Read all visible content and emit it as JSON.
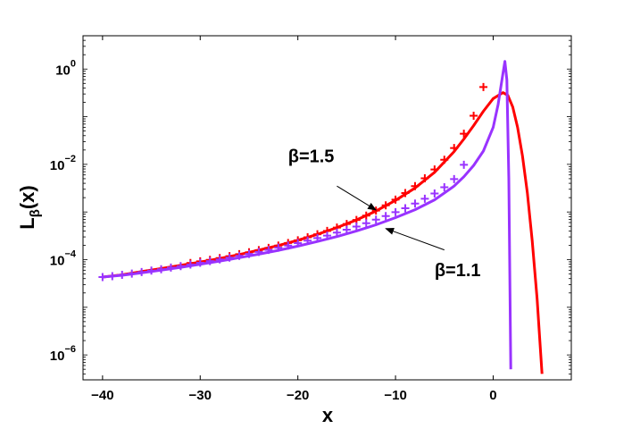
{
  "chart_data": {
    "type": "line",
    "xlabel": "x",
    "ylabel_main": "L",
    "ylabel_sub": "β",
    "ylabel_rest": "(x)",
    "xlim": [
      -42,
      8
    ],
    "ylim": [
      3e-07,
      5
    ],
    "yscale": "log",
    "grid": false,
    "x_ticks": [
      -40,
      -30,
      -20,
      -10,
      0
    ],
    "x_tick_labels": [
      "−40",
      "−30",
      "−20",
      "−10",
      "0"
    ],
    "y_ticks": [
      {
        "value": 1e-06,
        "base": "10",
        "exp": "−6"
      },
      {
        "value": 0.0001,
        "base": "10",
        "exp": "−4"
      },
      {
        "value": 0.01,
        "base": "10",
        "exp": "−2"
      },
      {
        "value": 1,
        "base": "10",
        "exp": "0"
      }
    ],
    "series": [
      {
        "name": "β=1.5",
        "kind": "curve",
        "color": "#ff0000",
        "x": [
          -40,
          -38,
          -36,
          -34,
          -32,
          -30,
          -28,
          -26,
          -24,
          -22,
          -20,
          -18,
          -16,
          -14,
          -12,
          -10,
          -8,
          -6,
          -4,
          -3,
          -2,
          -1,
          0,
          1,
          1.5,
          2,
          2.5,
          3,
          3.5,
          4,
          4.5,
          5
        ],
        "y": [
          4.3e-05,
          4.8e-05,
          5.6e-05,
          6.5e-05,
          7.6e-05,
          8.9e-05,
          0.000106,
          0.000128,
          0.000158,
          0.000198,
          0.000255,
          0.00034,
          0.00047,
          0.00068,
          0.00105,
          0.00175,
          0.0032,
          0.0068,
          0.0185,
          0.034,
          0.065,
          0.13,
          0.24,
          0.32,
          0.28,
          0.16,
          0.06,
          0.015,
          0.0025,
          0.00025,
          1.5e-05,
          4e-07
        ]
      },
      {
        "name": "β=1.5",
        "kind": "markers",
        "color": "#ff0000",
        "x": [
          -31,
          -30,
          -29,
          -28,
          -27,
          -26,
          -25,
          -24,
          -23,
          -22,
          -21,
          -20,
          -19,
          -18,
          -17,
          -16,
          -15,
          -14,
          -13,
          -12,
          -11,
          -10,
          -9,
          -8,
          -7,
          -6,
          -5,
          -4,
          -3,
          -2,
          -1
        ],
        "y": [
          8.5e-05,
          9.2e-05,
          9.9e-05,
          0.000108,
          0.000118,
          0.00013,
          0.000143,
          0.000158,
          0.000176,
          0.000198,
          0.000224,
          0.000255,
          0.000294,
          0.00034,
          0.0004,
          0.00047,
          0.00056,
          0.00068,
          0.00084,
          0.00107,
          0.00138,
          0.00182,
          0.0025,
          0.0035,
          0.0051,
          0.0078,
          0.0125,
          0.022,
          0.044,
          0.105,
          0.42
        ]
      },
      {
        "name": "β=1.1",
        "kind": "curve",
        "color": "#9933ff",
        "x": [
          -40,
          -38,
          -36,
          -34,
          -32,
          -30,
          -28,
          -26,
          -24,
          -22,
          -20,
          -18,
          -16,
          -14,
          -12,
          -10,
          -8,
          -6,
          -4,
          -3,
          -2,
          -1,
          0,
          0.5,
          1,
          1.2,
          1.4,
          1.6,
          1.8
        ],
        "y": [
          4.3e-05,
          4.7e-05,
          5.3e-05,
          6e-05,
          6.9e-05,
          8e-05,
          9.3e-05,
          0.00011,
          0.00013,
          0.000157,
          0.000192,
          0.00024,
          0.000305,
          0.0004,
          0.00054,
          0.00076,
          0.00112,
          0.0018,
          0.0035,
          0.0055,
          0.0095,
          0.019,
          0.06,
          0.18,
          0.8,
          1.45,
          0.6,
          0.005,
          5e-07
        ]
      },
      {
        "name": "β=1.1",
        "kind": "markers",
        "color": "#9933ff",
        "x": [
          -40,
          -39,
          -38,
          -37,
          -36,
          -35,
          -34,
          -33,
          -32,
          -31,
          -30,
          -29,
          -28,
          -27,
          -26,
          -25,
          -24,
          -23,
          -22,
          -21,
          -20,
          -19,
          -18,
          -17,
          -16,
          -15,
          -14,
          -13,
          -12,
          -11,
          -10,
          -9,
          -8,
          -7,
          -6,
          -5,
          -4,
          -3
        ],
        "y": [
          4.3e-05,
          4.5e-05,
          4.8e-05,
          5.1e-05,
          5.5e-05,
          5.9e-05,
          6.3e-05,
          6.8e-05,
          7.3e-05,
          7.9e-05,
          8.6e-05,
          9.3e-05,
          0.000101,
          0.00011,
          0.00012,
          0.000132,
          0.000145,
          0.00016,
          0.000178,
          0.000198,
          0.000222,
          0.00025,
          0.000283,
          0.00032,
          0.00037,
          0.000425,
          0.000495,
          0.00058,
          0.00069,
          0.00082,
          0.00099,
          0.0012,
          0.0015,
          0.0019,
          0.00245,
          0.0033,
          0.0049,
          0.0098
        ]
      }
    ],
    "annotations": [
      {
        "text": "β=1.5",
        "text_x": -21,
        "text_y": 0.011,
        "arrow_from": [
          -16,
          0.0035
        ],
        "arrow_to": [
          -12,
          0.0011
        ]
      },
      {
        "text": "β=1.1",
        "text_x": -6,
        "text_y": 4.5e-05,
        "arrow_from": [
          -5,
          0.00016
        ],
        "arrow_to": [
          -11,
          0.00045
        ]
      }
    ]
  }
}
